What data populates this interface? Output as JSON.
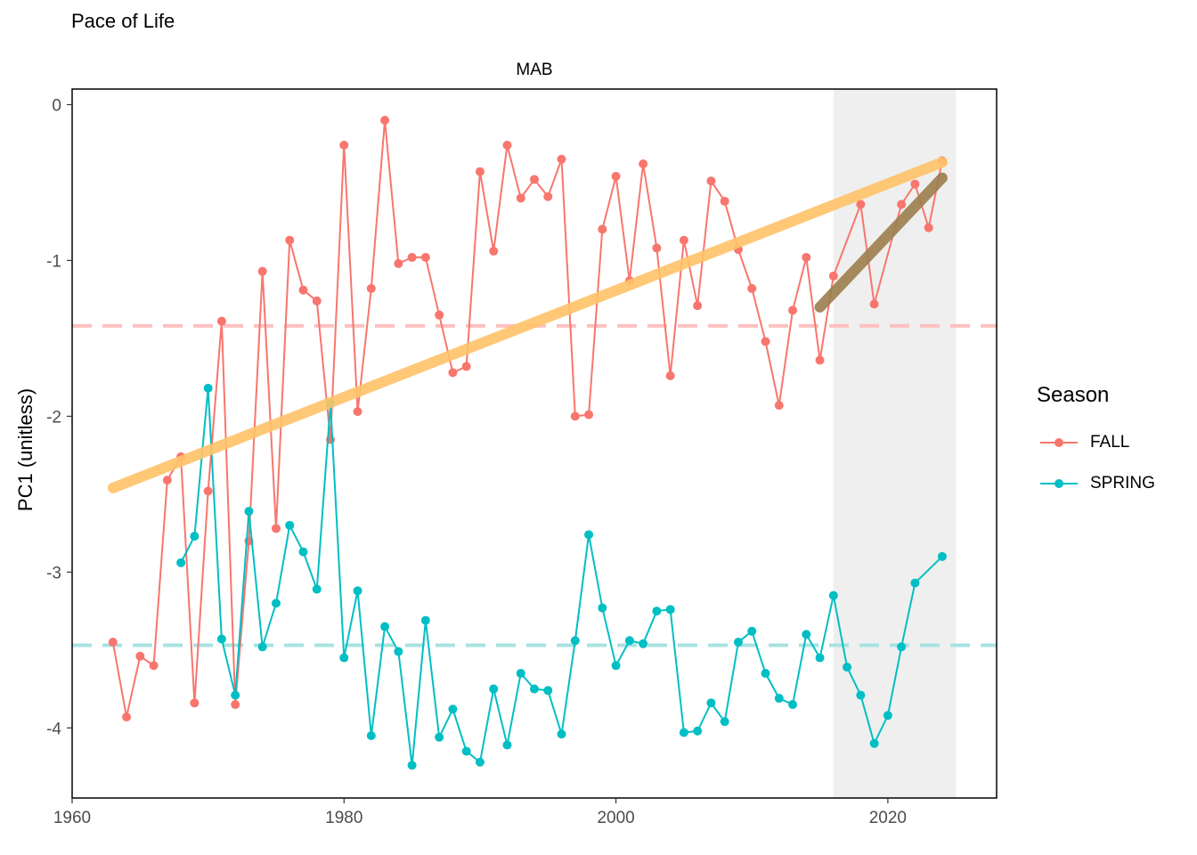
{
  "title": "Pace of Life",
  "chart_data": {
    "type": "line",
    "panel_label": "MAB",
    "xlabel": "",
    "ylabel": "PC1 (unitless)",
    "xlim": [
      1960,
      2028
    ],
    "ylim": [
      -4.45,
      0.1
    ],
    "x_ticks": [
      1960,
      1980,
      2000,
      2020
    ],
    "y_ticks": [
      0,
      -1,
      -2,
      -3,
      -4
    ],
    "shaded_region": [
      2016,
      2025
    ],
    "legend": {
      "title": "Season",
      "position": "right"
    },
    "series": [
      {
        "name": "FALL",
        "color": "#F8766D",
        "x": [
          1963,
          1964,
          1965,
          1966,
          1967,
          1968,
          1969,
          1970,
          1971,
          1972,
          1973,
          1974,
          1975,
          1976,
          1977,
          1978,
          1979,
          1980,
          1981,
          1982,
          1983,
          1984,
          1985,
          1986,
          1987,
          1988,
          1989,
          1990,
          1991,
          1992,
          1993,
          1994,
          1995,
          1996,
          1997,
          1998,
          1999,
          2000,
          2001,
          2002,
          2003,
          2004,
          2005,
          2006,
          2007,
          2008,
          2009,
          2010,
          2011,
          2012,
          2013,
          2014,
          2015,
          2016,
          2018,
          2019,
          2021,
          2022,
          2023,
          2024
        ],
        "values": [
          -3.45,
          -3.93,
          -3.54,
          -3.6,
          -2.41,
          -2.26,
          -3.84,
          -2.48,
          -1.39,
          -3.85,
          -2.8,
          -1.07,
          -2.72,
          -0.87,
          -1.19,
          -1.26,
          -2.15,
          -0.26,
          -1.97,
          -1.18,
          -0.1,
          -1.02,
          -0.98,
          -0.98,
          -1.35,
          -1.72,
          -1.68,
          -0.43,
          -0.94,
          -0.26,
          -0.6,
          -0.48,
          -0.59,
          -0.35,
          -2.0,
          -1.99,
          -0.8,
          -0.46,
          -1.13,
          -0.38,
          -0.92,
          -1.74,
          -0.87,
          -1.29,
          -0.49,
          -0.62,
          -0.93,
          -1.18,
          -1.52,
          -1.93,
          -1.32,
          -0.98,
          -1.64,
          -1.1,
          -0.64,
          -1.28,
          -0.64,
          -0.51,
          -0.79,
          -0.36
        ]
      },
      {
        "name": "SPRING",
        "color": "#00BFC4",
        "x": [
          1968,
          1969,
          1970,
          1971,
          1972,
          1973,
          1974,
          1975,
          1976,
          1977,
          1978,
          1979,
          1980,
          1981,
          1982,
          1983,
          1984,
          1985,
          1986,
          1987,
          1988,
          1989,
          1990,
          1991,
          1992,
          1993,
          1994,
          1995,
          1996,
          1997,
          1998,
          1999,
          2000,
          2001,
          2002,
          2003,
          2004,
          2005,
          2006,
          2007,
          2008,
          2009,
          2010,
          2011,
          2012,
          2013,
          2014,
          2015,
          2016,
          2017,
          2018,
          2019,
          2020,
          2021,
          2022,
          2024
        ],
        "values": [
          -2.94,
          -2.77,
          -1.82,
          -3.43,
          -3.79,
          -2.61,
          -3.48,
          -3.2,
          -2.7,
          -2.87,
          -3.11,
          -1.92,
          -3.55,
          -3.12,
          -4.05,
          -3.35,
          -3.51,
          -4.24,
          -3.31,
          -4.06,
          -3.88,
          -4.15,
          -4.22,
          -3.75,
          -4.11,
          -3.65,
          -3.75,
          -3.76,
          -4.04,
          -3.44,
          -2.76,
          -3.23,
          -3.6,
          -3.44,
          -3.46,
          -3.25,
          -3.24,
          -4.03,
          -4.02,
          -3.84,
          -3.96,
          -3.45,
          -3.38,
          -3.65,
          -3.81,
          -3.85,
          -3.4,
          -3.55,
          -3.15,
          -3.61,
          -3.79,
          -4.1,
          -3.92,
          -3.48,
          -3.07,
          -2.9
        ]
      }
    ],
    "mean_lines": [
      {
        "series": "FALL",
        "y": -1.42,
        "color": "#FFC0C0"
      },
      {
        "series": "SPRING",
        "y": -3.47,
        "color": "#A8E2E2"
      }
    ],
    "trend_lines": [
      {
        "series": "FALL",
        "x": [
          1963,
          2024
        ],
        "y": [
          -2.46,
          -0.37
        ],
        "color": "#FFC369"
      },
      {
        "series": "FALL",
        "x": [
          2015,
          2024
        ],
        "y": [
          -1.3,
          -0.47
        ],
        "color": "#9C7E4E"
      }
    ]
  }
}
